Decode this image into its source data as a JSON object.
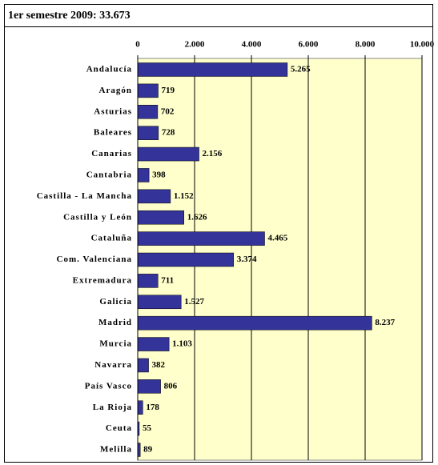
{
  "chart_data": {
    "type": "bar",
    "orientation": "horizontal",
    "title": "1er semestre 2009: 33.673",
    "categories": [
      "Andalucía",
      "Aragón",
      "Asturias",
      "Baleares",
      "Canarias",
      "Cantabria",
      "Castilla - La Mancha",
      "Castilla y León",
      "Cataluña",
      "Com. Valenciana",
      "Extremadura",
      "Galicia",
      "Madrid",
      "Murcia",
      "Navarra",
      "País Vasco",
      "La Rioja",
      "Ceuta",
      "Melilla"
    ],
    "values": [
      5265,
      719,
      702,
      728,
      2156,
      398,
      1152,
      1626,
      4465,
      3374,
      711,
      1527,
      8237,
      1103,
      382,
      806,
      178,
      55,
      89
    ],
    "value_labels": [
      "5.265",
      "719",
      "702",
      "728",
      "2.156",
      "398",
      "1.152",
      "1.626",
      "4.465",
      "3.374",
      "711",
      "1.527",
      "8.237",
      "1.103",
      "382",
      "806",
      "178",
      "55",
      "89"
    ],
    "color": "#333399",
    "xlim": [
      0,
      10000
    ],
    "xticks": [
      0,
      {
        "value": 2000,
        "label": "2.000"
      },
      {
        "value": 4000,
        "label": "4.000"
      },
      {
        "value": 6000,
        "label": "6.000"
      },
      {
        "value": 8000,
        "label": "8.000"
      },
      {
        "value": 10000,
        "label": "10.000"
      }
    ],
    "grid": true
  }
}
